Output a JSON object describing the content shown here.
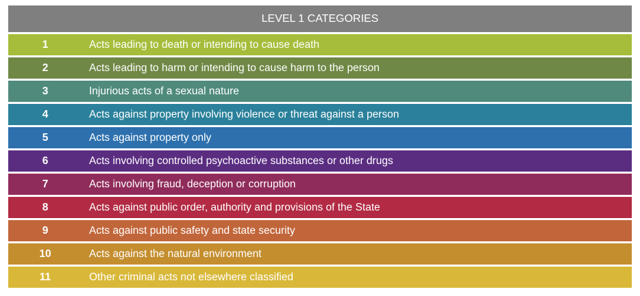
{
  "table": {
    "title": "LEVEL 1 CATEGORIES",
    "rows": [
      {
        "number": "1",
        "label": "Acts leading to death or intending to cause death",
        "color": "#a5bd3b"
      },
      {
        "number": "2",
        "label": "Acts leading to harm or intending to cause harm to the person",
        "color": "#6f8845"
      },
      {
        "number": "3",
        "label": "Injurious acts of a sexual nature",
        "color": "#4f8a7d"
      },
      {
        "number": "4",
        "label": "Acts against property involving violence or threat against a person",
        "color": "#2b819b"
      },
      {
        "number": "5",
        "label": "Acts against property only",
        "color": "#2d70ad"
      },
      {
        "number": "6",
        "label": "Acts involving controlled psychoactive substances or other drugs",
        "color": "#5a2d81"
      },
      {
        "number": "7",
        "label": "Acts involving fraud, deception or corruption",
        "color": "#902c5c"
      },
      {
        "number": "8",
        "label": "Acts against public order, authority and provisions of the State",
        "color": "#b22a43"
      },
      {
        "number": "9",
        "label": "Acts against public safety and state security",
        "color": "#c1663a"
      },
      {
        "number": "10",
        "label": "Acts against the natural environment",
        "color": "#c48e2f"
      },
      {
        "number": "11",
        "label": "Other criminal acts not elsewhere classified",
        "color": "#d9b839"
      }
    ]
  }
}
